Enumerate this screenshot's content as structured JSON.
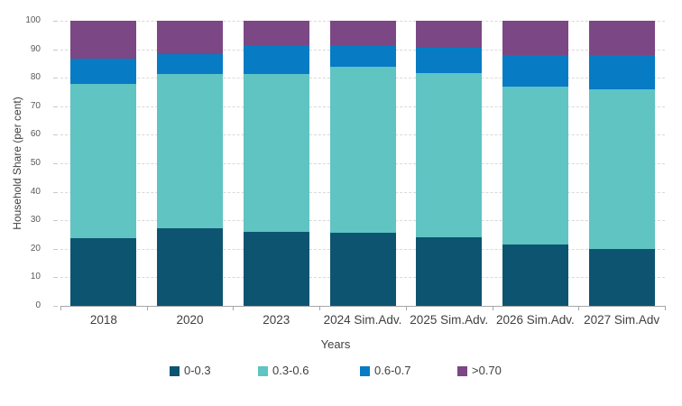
{
  "chart_data": {
    "type": "bar",
    "stacked": true,
    "title": "",
    "xlabel": "Years",
    "ylabel": "Household Share (per cent)",
    "categories": [
      "2018",
      "2020",
      "2023",
      "2024 Sim.Adv.",
      "2025 Sim.Adv.",
      "2026 Sim.Adv.",
      "2027 Sim.Adv"
    ],
    "series": [
      {
        "name": "0-0.3",
        "color": "#0d5471",
        "values": [
          23.8,
          27.3,
          26.0,
          25.7,
          23.9,
          21.4,
          19.8
        ]
      },
      {
        "name": "0.3-0.6",
        "color": "#5fc4c2",
        "values": [
          54.2,
          53.9,
          55.2,
          58.3,
          57.9,
          55.4,
          56.2
        ]
      },
      {
        "name": "0.6-0.7",
        "color": "#077bc4",
        "values": [
          8.6,
          7.1,
          10.1,
          7.5,
          8.7,
          11.2,
          12.0
        ]
      },
      {
        "name": ">0.70",
        "color": "#7b4784",
        "values": [
          13.4,
          11.7,
          8.7,
          8.5,
          9.5,
          12.0,
          12.0
        ]
      }
    ],
    "ylim": [
      0,
      100
    ],
    "yticks": [
      0,
      10,
      20,
      30,
      40,
      50,
      60,
      70,
      80,
      90,
      100
    ],
    "grid": "horizontal-dashed",
    "legend_position": "bottom"
  },
  "colors": {
    "grid": "#d9d9d9",
    "axis": "#a6a6a6",
    "tick_label": "#595959",
    "text": "#404040",
    "background": "#ffffff"
  }
}
